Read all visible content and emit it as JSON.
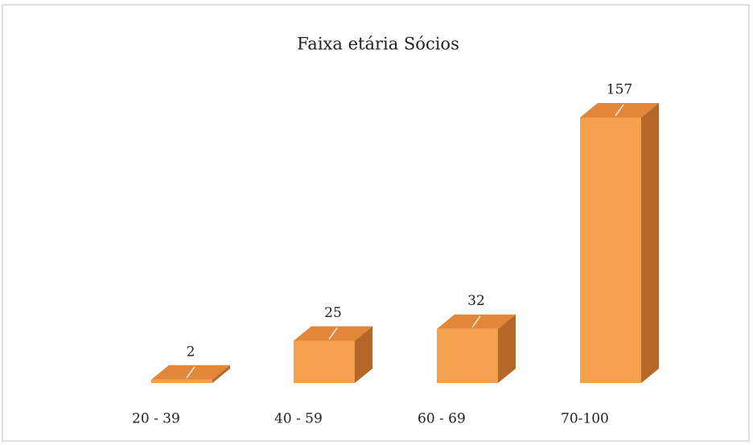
{
  "chart_data": {
    "type": "bar3d",
    "title": "Faixa etária Sócios",
    "categories": [
      "20 - 39",
      "40 - 59",
      "60 -  69",
      "70-100"
    ],
    "values": [
      2,
      25,
      32,
      157
    ],
    "color": "#f4a04e"
  }
}
